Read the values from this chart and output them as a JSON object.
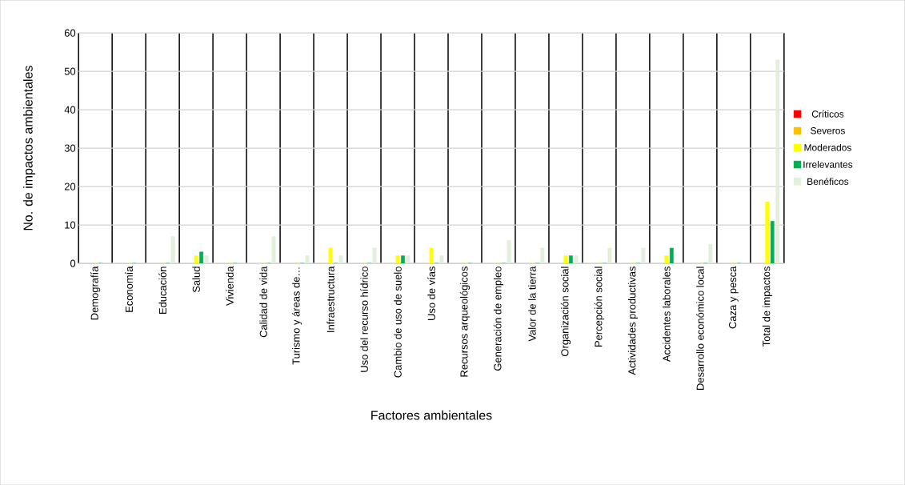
{
  "chart_data": {
    "type": "bar",
    "xlabel": "Factores ambientales",
    "ylabel": "No. de impactos ambientales",
    "categories": [
      "Demografía",
      "Economía",
      "Educación",
      "Salud",
      "Vivienda",
      "Calidad de vida",
      "Turismo y áreas de…",
      "Infraestructura",
      "Uso del recurso hídrico",
      "Cambio de uso de suelo",
      "Uso de vías",
      "Recursos arqueológicos",
      "Generación de empleo",
      "Valor de la tierra",
      "Organización social",
      "Percepción social",
      "Actividades productivas",
      "Accidentes laborales",
      "Desarrollo económico local",
      "Caza y pesca",
      "Total de impactos"
    ],
    "series": [
      {
        "name": "Críticos",
        "color": "#ff0000",
        "values": [
          0,
          0,
          0,
          0,
          0,
          0,
          0,
          0,
          0,
          0,
          0,
          0,
          0,
          0,
          0,
          0,
          0,
          0,
          0,
          0,
          0
        ]
      },
      {
        "name": "Severos",
        "color": "#ffc000",
        "values": [
          0,
          0,
          0,
          0,
          0,
          0,
          0,
          0,
          0,
          0,
          0,
          0,
          0,
          0,
          0,
          0,
          0,
          0,
          0,
          0,
          0
        ]
      },
      {
        "name": "Moderados",
        "color": "#ffff00",
        "values": [
          0,
          0,
          0,
          2,
          0,
          0,
          0,
          4,
          0,
          2,
          4,
          0,
          0,
          0,
          2,
          0,
          0,
          2,
          0,
          0,
          16
        ]
      },
      {
        "name": "Irrelevantes",
        "color": "#00b050",
        "values": [
          0,
          0,
          0,
          3,
          0,
          0,
          0,
          0,
          0,
          2,
          0,
          0,
          0,
          0,
          2,
          0,
          0,
          4,
          0,
          0,
          11
        ]
      },
      {
        "name": "Benéficos",
        "color": "#e2efda",
        "values": [
          0,
          0,
          7,
          2,
          0,
          7,
          2,
          2,
          4,
          2,
          2,
          0,
          6,
          4,
          2,
          4,
          4,
          0,
          5,
          0,
          53
        ]
      }
    ],
    "ylim": [
      0,
      60
    ],
    "yticks": [
      0,
      10,
      20,
      30,
      40,
      50,
      60
    ],
    "grid": true,
    "legend": "right"
  }
}
